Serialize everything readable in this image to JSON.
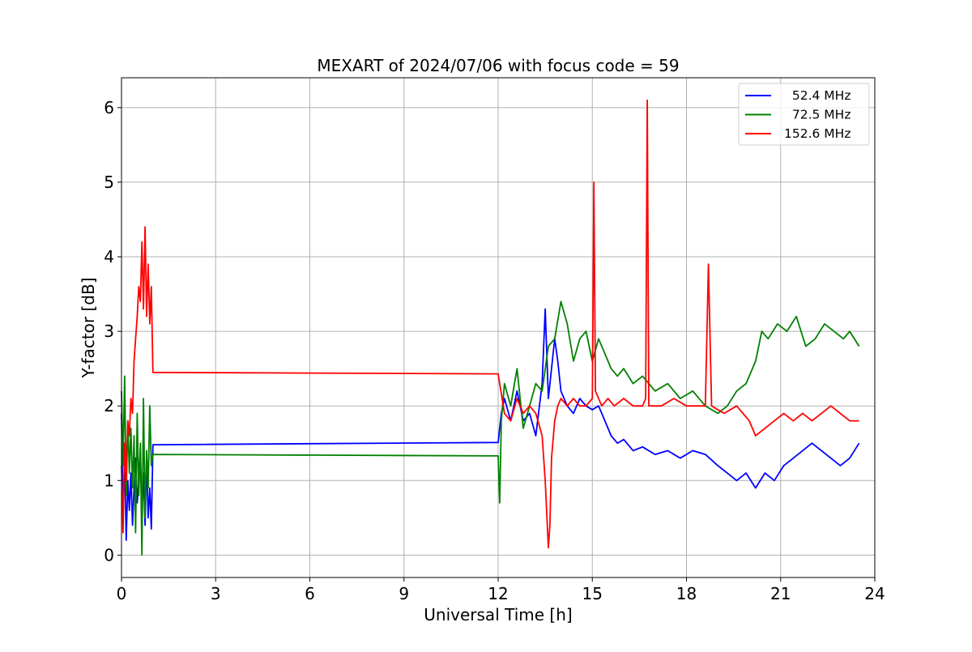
{
  "chart_data": {
    "type": "line",
    "title": "MEXART of 2024/07/06 with focus code = 59",
    "xlabel": "Universal Time [h]",
    "ylabel": "Y-factor [dB]",
    "xlim": [
      0,
      24
    ],
    "ylim": [
      -0.3,
      6.4
    ],
    "xticks": [
      0,
      3,
      6,
      9,
      12,
      15,
      18,
      21,
      24
    ],
    "yticks": [
      0,
      1,
      2,
      3,
      4,
      5,
      6
    ],
    "grid": true,
    "legend_position": "top-right",
    "series": [
      {
        "name": "  52.4 MHz",
        "color": "#0000ff",
        "x": [
          0.0,
          0.05,
          0.1,
          0.15,
          0.2,
          0.25,
          0.3,
          0.35,
          0.4,
          0.45,
          0.5,
          0.55,
          0.6,
          0.65,
          0.7,
          0.75,
          0.8,
          0.85,
          0.9,
          0.95,
          1.0,
          12.0,
          12.1,
          12.2,
          12.4,
          12.6,
          12.8,
          13.0,
          13.2,
          13.4,
          13.5,
          13.6,
          13.7,
          13.8,
          13.9,
          14.0,
          14.2,
          14.4,
          14.6,
          14.8,
          15.0,
          15.2,
          15.4,
          15.6,
          15.8,
          16.0,
          16.3,
          16.6,
          17.0,
          17.4,
          17.8,
          18.2,
          18.6,
          19.0,
          19.3,
          19.6,
          19.9,
          20.2,
          20.5,
          20.8,
          21.1,
          21.4,
          21.7,
          22.0,
          22.3,
          22.6,
          22.9,
          23.2,
          23.5
        ],
        "y": [
          1.9,
          0.5,
          1.3,
          0.2,
          1.0,
          0.6,
          1.1,
          0.4,
          0.9,
          1.3,
          0.7,
          1.0,
          1.4,
          0.6,
          1.1,
          0.4,
          1.3,
          0.5,
          0.9,
          0.35,
          1.48,
          1.51,
          1.9,
          2.1,
          1.8,
          2.2,
          1.8,
          1.9,
          1.6,
          2.3,
          3.3,
          2.1,
          2.5,
          2.9,
          2.6,
          2.2,
          2.0,
          1.9,
          2.1,
          2.0,
          1.95,
          2.0,
          1.8,
          1.6,
          1.5,
          1.55,
          1.4,
          1.45,
          1.35,
          1.4,
          1.3,
          1.4,
          1.35,
          1.2,
          1.1,
          1.0,
          1.1,
          0.9,
          1.1,
          1.0,
          1.2,
          1.3,
          1.4,
          1.5,
          1.4,
          1.3,
          1.2,
          1.3,
          1.5
        ]
      },
      {
        "name": "  72.5 MHz",
        "color": "#008000",
        "x": [
          0.0,
          0.05,
          0.1,
          0.15,
          0.2,
          0.25,
          0.3,
          0.35,
          0.4,
          0.45,
          0.5,
          0.55,
          0.6,
          0.65,
          0.7,
          0.75,
          0.8,
          0.85,
          0.9,
          0.95,
          1.0,
          12.0,
          12.05,
          12.1,
          12.2,
          12.4,
          12.6,
          12.8,
          13.0,
          13.2,
          13.4,
          13.6,
          13.8,
          14.0,
          14.2,
          14.4,
          14.6,
          14.8,
          15.0,
          15.2,
          15.4,
          15.6,
          15.8,
          16.0,
          16.3,
          16.6,
          17.0,
          17.4,
          17.8,
          18.2,
          18.6,
          19.0,
          19.3,
          19.6,
          19.9,
          20.2,
          20.4,
          20.6,
          20.9,
          21.2,
          21.5,
          21.8,
          22.1,
          22.4,
          22.7,
          23.0,
          23.2,
          23.5
        ],
        "y": [
          2.2,
          1.2,
          2.4,
          0.8,
          1.8,
          1.1,
          1.7,
          0.9,
          1.6,
          0.3,
          1.9,
          0.8,
          1.5,
          0.0,
          2.1,
          0.5,
          1.4,
          0.9,
          2.0,
          1.2,
          1.35,
          1.33,
          0.7,
          1.8,
          2.3,
          2.0,
          2.5,
          1.7,
          2.0,
          2.3,
          2.2,
          2.8,
          2.9,
          3.4,
          3.1,
          2.6,
          2.9,
          3.0,
          2.6,
          2.9,
          2.7,
          2.5,
          2.4,
          2.5,
          2.3,
          2.4,
          2.2,
          2.3,
          2.1,
          2.2,
          2.0,
          1.9,
          2.0,
          2.2,
          2.3,
          2.6,
          3.0,
          2.9,
          3.1,
          3.0,
          3.2,
          2.8,
          2.9,
          3.1,
          3.0,
          2.9,
          3.0,
          2.8
        ]
      },
      {
        "name": "152.6 MHz",
        "color": "#ff0000",
        "x": [
          0.0,
          0.05,
          0.1,
          0.15,
          0.2,
          0.25,
          0.3,
          0.35,
          0.4,
          0.45,
          0.5,
          0.55,
          0.6,
          0.65,
          0.7,
          0.75,
          0.8,
          0.85,
          0.9,
          0.95,
          1.0,
          12.0,
          12.2,
          12.4,
          12.6,
          12.8,
          13.0,
          13.2,
          13.4,
          13.5,
          13.6,
          13.65,
          13.7,
          13.8,
          13.9,
          14.0,
          14.2,
          14.4,
          14.6,
          14.8,
          15.0,
          15.05,
          15.1,
          15.3,
          15.5,
          15.7,
          16.0,
          16.3,
          16.6,
          16.7,
          16.75,
          16.8,
          17.2,
          17.6,
          18.0,
          18.4,
          18.6,
          18.7,
          18.8,
          19.2,
          19.6,
          20.0,
          20.2,
          20.5,
          20.8,
          21.1,
          21.4,
          21.7,
          22.0,
          22.3,
          22.6,
          22.9,
          23.2,
          23.5
        ],
        "y": [
          1.2,
          0.3,
          1.5,
          1.0,
          1.8,
          1.6,
          2.1,
          1.9,
          2.6,
          2.9,
          3.2,
          3.6,
          3.4,
          4.2,
          3.3,
          4.4,
          3.2,
          3.9,
          3.1,
          3.6,
          2.45,
          2.43,
          1.9,
          1.8,
          2.1,
          1.9,
          2.0,
          1.9,
          1.6,
          1.0,
          0.1,
          0.4,
          1.3,
          1.8,
          2.0,
          2.1,
          2.0,
          2.1,
          2.0,
          2.0,
          2.1,
          5.0,
          2.2,
          2.0,
          2.1,
          2.0,
          2.1,
          2.0,
          2.0,
          2.1,
          6.1,
          2.0,
          2.0,
          2.1,
          2.0,
          2.0,
          2.0,
          3.9,
          2.0,
          1.9,
          2.0,
          1.8,
          1.6,
          1.7,
          1.8,
          1.9,
          1.8,
          1.9,
          1.8,
          1.9,
          2.0,
          1.9,
          1.8,
          1.8
        ]
      }
    ]
  }
}
